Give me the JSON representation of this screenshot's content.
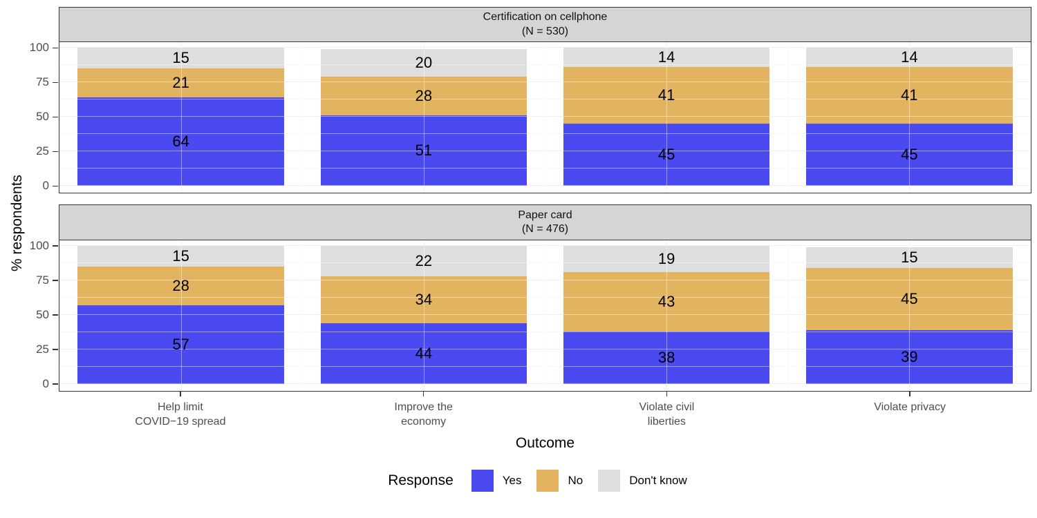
{
  "chart_data": {
    "type": "bar",
    "stacked": true,
    "orientation": "vertical",
    "facet_layout": "rows",
    "xlabel": "Outcome",
    "ylabel": "% respondents",
    "ylim": [
      0,
      100
    ],
    "y_ticks": [
      0,
      25,
      50,
      75,
      100
    ],
    "grid": true,
    "legend_position": "bottom",
    "legend_title": "Response",
    "series_names": [
      "Yes",
      "No",
      "Don't know"
    ],
    "series_colors": {
      "Yes": "#4B49F0",
      "No": "#E2B45F",
      "Don't know": "#DEDEDE"
    },
    "categories": [
      [
        "Help limit",
        "COVID−19 spread"
      ],
      [
        "Improve the",
        "economy"
      ],
      [
        "Violate civil",
        "liberties"
      ],
      [
        "Violate privacy",
        ""
      ]
    ],
    "facets": [
      {
        "title": [
          "Certification on cellphone",
          "(N = 530)"
        ],
        "series": [
          {
            "name": "Yes",
            "values": [
              64,
              51,
              45,
              45
            ]
          },
          {
            "name": "No",
            "values": [
              21,
              28,
              41,
              41
            ]
          },
          {
            "name": "Don't know",
            "values": [
              15,
              20,
              14,
              14
            ]
          }
        ]
      },
      {
        "title": [
          "Paper card",
          "(N = 476)"
        ],
        "series": [
          {
            "name": "Yes",
            "values": [
              57,
              44,
              38,
              39
            ]
          },
          {
            "name": "No",
            "values": [
              28,
              34,
              43,
              45
            ]
          },
          {
            "name": "Don't know",
            "values": [
              15,
              22,
              19,
              15
            ]
          }
        ]
      }
    ]
  },
  "colors": {
    "strip_bg": "#D5D5D5",
    "panel_border": "#333333",
    "grid_major": "#E5E5E5",
    "grid_minor": "#F2F2F2",
    "axis_text": "#4D4D4D",
    "bar_label": "#000000"
  }
}
